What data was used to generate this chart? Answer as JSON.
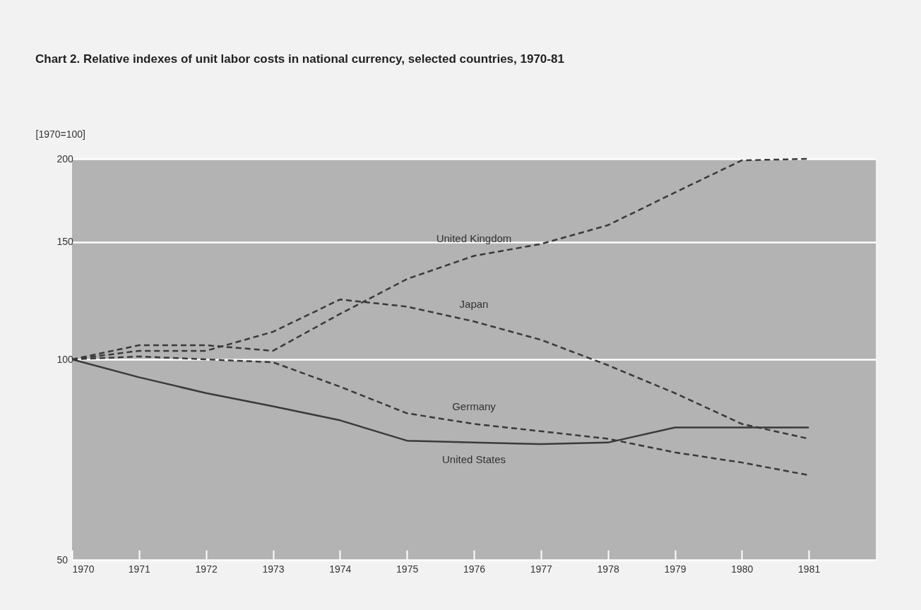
{
  "chart_data": {
    "type": "line",
    "title": "Chart 2. Relative indexes of unit labor costs in national currency, selected countries, 1970-81",
    "ylabel": "[1970=100]",
    "x": [
      1970,
      1971,
      1972,
      1973,
      1974,
      1975,
      1976,
      1977,
      1978,
      1979,
      1980,
      1981
    ],
    "series": [
      {
        "name": "United Kingdom",
        "color": "#3a3a3a",
        "line_style": "dashed",
        "values": [
          100,
          105,
          105,
          103,
          117,
          132,
          143,
          149,
          159,
          178,
          199,
          200
        ]
      },
      {
        "name": "Japan",
        "color": "#3a3a3a",
        "line_style": "dashed",
        "values": [
          100,
          103,
          103,
          110,
          123,
          120,
          114,
          107,
          98,
          89,
          80,
          76
        ]
      },
      {
        "name": "Germany",
        "color": "#3a3a3a",
        "line_style": "dashed",
        "values": [
          100,
          101,
          100,
          99,
          91,
          83,
          80,
          78,
          76,
          72.5,
          70,
          67
        ]
      },
      {
        "name": "United States",
        "color": "#3a3a3a",
        "line_style": "solid",
        "values": [
          100,
          94,
          89,
          85,
          81,
          75.5,
          75,
          74.6,
          75,
          79,
          79,
          79
        ]
      }
    ],
    "xlim": [
      1970,
      1982
    ],
    "xticks": [
      1970,
      1971,
      1972,
      1973,
      1974,
      1975,
      1976,
      1977,
      1978,
      1979,
      1980,
      1981
    ],
    "ylim": [
      50,
      200
    ],
    "yticks": [
      50,
      100,
      150,
      200
    ],
    "log": true,
    "grid": "y",
    "legend": false,
    "marker": "none"
  }
}
